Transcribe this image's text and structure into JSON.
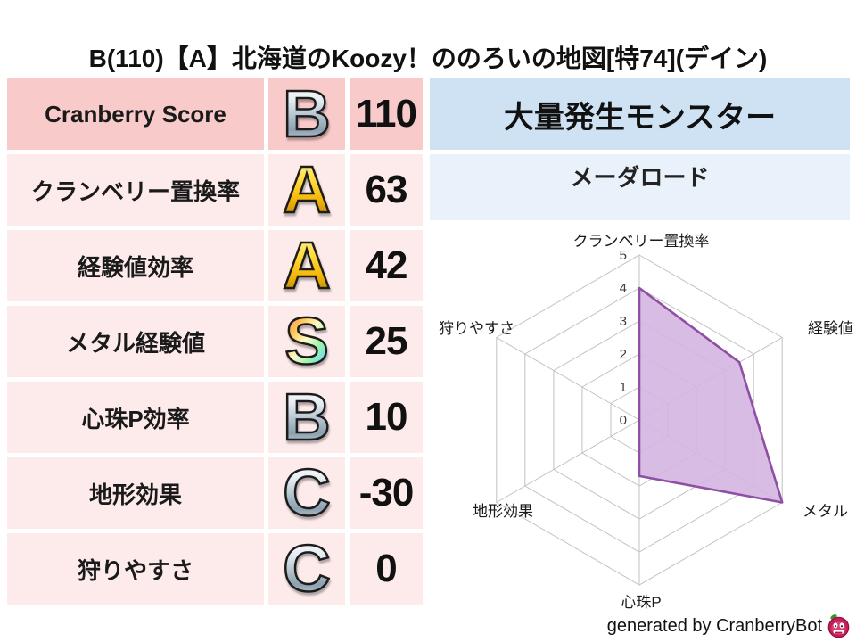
{
  "title": "B(110)【A】北海道のKoozy！ののろいの地図[特74](デイン)",
  "stats_table": {
    "rows": [
      {
        "label": "Cranberry Score",
        "grade": "B",
        "grade_style": "silver",
        "value": "110",
        "emphasis": true
      },
      {
        "label": "クランベリー置換率",
        "grade": "A",
        "grade_style": "gold",
        "value": "63",
        "emphasis": false
      },
      {
        "label": "経験値効率",
        "grade": "A",
        "grade_style": "gold",
        "value": "42",
        "emphasis": false
      },
      {
        "label": "メタル経験値",
        "grade": "S",
        "grade_style": "rainbow",
        "value": "25",
        "emphasis": false
      },
      {
        "label": "心珠P効率",
        "grade": "B",
        "grade_style": "silver",
        "value": "10",
        "emphasis": false
      },
      {
        "label": "地形効果",
        "grade": "C",
        "grade_style": "silver",
        "value": "-30",
        "emphasis": false
      },
      {
        "label": "狩りやすさ",
        "grade": "C",
        "grade_style": "silver",
        "value": "0",
        "emphasis": false
      }
    ]
  },
  "monster_panel": {
    "header": "大量発生モンスター",
    "name": "メーダロード"
  },
  "chart_data": {
    "type": "radar",
    "title": "",
    "categories": [
      "クランベリー置換率",
      "経験値",
      "メタル",
      "心珠P",
      "地形効果",
      "狩りやすさ"
    ],
    "values": [
      4,
      3.5,
      5,
      1.7,
      0,
      0
    ],
    "tick_labels": [
      "0",
      "1",
      "2",
      "3",
      "4",
      "5"
    ],
    "rmax": 5,
    "grid": true,
    "shape": "hexagon",
    "fill_color": "#d4b5e0",
    "stroke_color": "#8e4fa5",
    "grid_color": "#c2c2c2"
  },
  "footer": {
    "credit": "generated by CranberryBot",
    "icon": "cranberry-bot-icon"
  },
  "colors": {
    "row_emphasis_bg": "#f9caca",
    "row_bg": "#fdeaea",
    "monster_header_bg": "#cfe2f3",
    "monster_name_bg": "#e9f1fa"
  }
}
